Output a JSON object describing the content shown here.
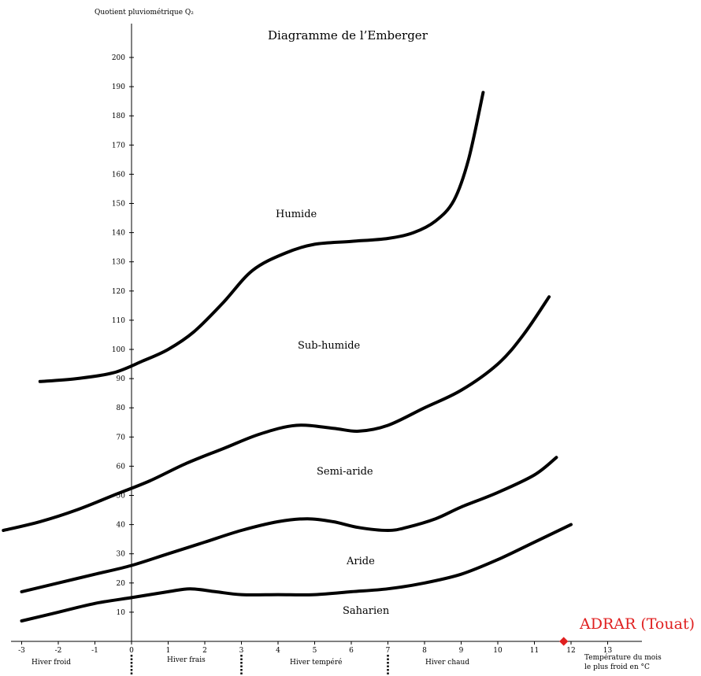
{
  "chart_data": {
    "type": "line",
    "title": "Diagramme de l’Emberger",
    "ylabel": "Quotient pluviométrique Q₂",
    "xlabel_lines": [
      "Température du mois",
      "le plus froid en °C"
    ],
    "xlim": [
      -3,
      13
    ],
    "ylim": [
      0,
      200
    ],
    "x_ticks": [
      -3,
      -2,
      -1,
      0,
      1,
      2,
      3,
      4,
      5,
      6,
      7,
      8,
      9,
      10,
      11,
      12,
      13
    ],
    "y_ticks": [
      10,
      20,
      30,
      40,
      50,
      60,
      70,
      80,
      90,
      100,
      110,
      120,
      130,
      140,
      150,
      160,
      170,
      180,
      190,
      200
    ],
    "grid": false,
    "series": [
      {
        "points": [
          [
            -2.5,
            89
          ],
          [
            -1.5,
            90
          ],
          [
            -0.5,
            92
          ],
          [
            0.3,
            96
          ],
          [
            1,
            100
          ],
          [
            1.7,
            106
          ],
          [
            2.5,
            116
          ],
          [
            3.3,
            127
          ],
          [
            4.2,
            133
          ],
          [
            5,
            136
          ],
          [
            6,
            137
          ],
          [
            7,
            138
          ],
          [
            7.7,
            140
          ],
          [
            8.3,
            144
          ],
          [
            8.8,
            151
          ],
          [
            9.2,
            165
          ],
          [
            9.6,
            188
          ]
        ]
      },
      {
        "points": [
          [
            -3.5,
            38
          ],
          [
            -2.5,
            41
          ],
          [
            -1.5,
            45
          ],
          [
            -0.5,
            50
          ],
          [
            0.5,
            55
          ],
          [
            1.5,
            61
          ],
          [
            2.5,
            66
          ],
          [
            3.5,
            71
          ],
          [
            4.5,
            74
          ],
          [
            5.5,
            73
          ],
          [
            6.2,
            72
          ],
          [
            7,
            74
          ],
          [
            8,
            80
          ],
          [
            9,
            86
          ],
          [
            10,
            95
          ],
          [
            10.7,
            105
          ],
          [
            11.4,
            118
          ]
        ]
      },
      {
        "points": [
          [
            -3,
            17
          ],
          [
            -2,
            20
          ],
          [
            -1,
            23
          ],
          [
            0,
            26
          ],
          [
            1,
            30
          ],
          [
            2,
            34
          ],
          [
            3,
            38
          ],
          [
            4,
            41
          ],
          [
            4.8,
            42
          ],
          [
            5.5,
            41
          ],
          [
            6.2,
            39
          ],
          [
            7,
            38
          ],
          [
            7.5,
            39
          ],
          [
            8.3,
            42
          ],
          [
            9,
            46
          ],
          [
            10,
            51
          ],
          [
            11,
            57
          ],
          [
            11.6,
            63
          ]
        ]
      },
      {
        "points": [
          [
            -3,
            7
          ],
          [
            -2,
            10
          ],
          [
            -1,
            13
          ],
          [
            0,
            15
          ],
          [
            1,
            17
          ],
          [
            1.6,
            18
          ],
          [
            2.3,
            17
          ],
          [
            3,
            16
          ],
          [
            4,
            16
          ],
          [
            5,
            16
          ],
          [
            6,
            17
          ],
          [
            7,
            18
          ],
          [
            8,
            20
          ],
          [
            9,
            23
          ],
          [
            10,
            28
          ],
          [
            11,
            34
          ],
          [
            12,
            40
          ]
        ]
      }
    ],
    "regions": [
      "Humide",
      "Sub-humide",
      "Semi-aride",
      "Aride",
      "Saharien"
    ],
    "winter_zones": [
      "Hiver froid",
      "Hiver frais",
      "Hiver tempéré",
      "Hiver chaud"
    ],
    "winter_dividers_x": [
      0,
      3,
      7
    ],
    "station": {
      "label": "ADRAR (Touat)",
      "x": 11.8,
      "y": 0,
      "color": "#e02020"
    }
  }
}
